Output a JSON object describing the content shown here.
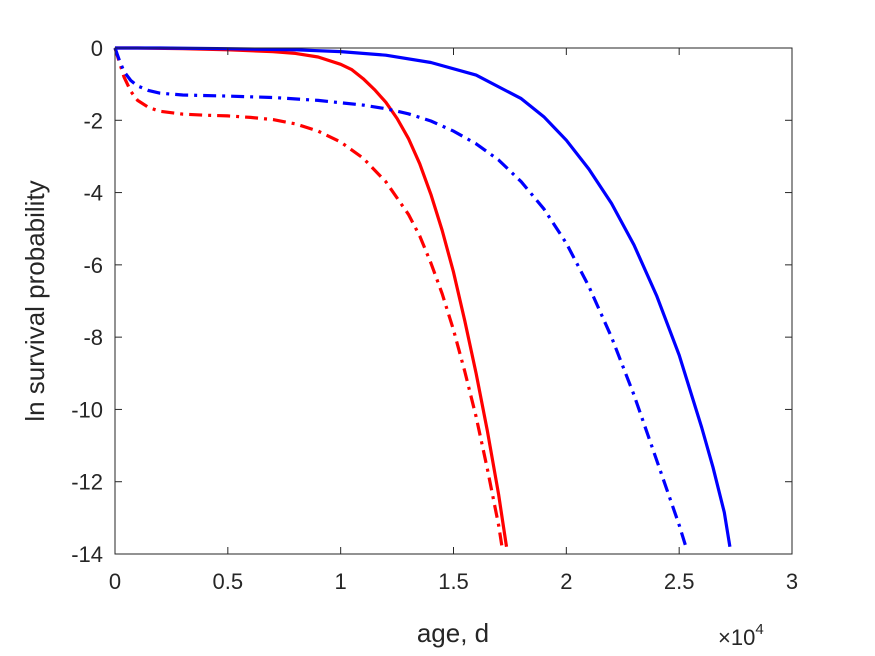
{
  "chart_data": {
    "type": "line",
    "xlabel": "age, d",
    "ylabel": "ln survival probability",
    "x_exponent": {
      "base": "10",
      "power": "4"
    },
    "xlim": [
      0,
      30000
    ],
    "ylim": [
      -14,
      0
    ],
    "xticks": [
      0,
      5000,
      10000,
      15000,
      20000,
      25000,
      30000
    ],
    "xtick_labels": [
      "0",
      "0.5",
      "1",
      "1.5",
      "2",
      "2.5",
      "3"
    ],
    "yticks": [
      0,
      -2,
      -4,
      -6,
      -8,
      -10,
      -12,
      -14
    ],
    "ytick_labels": [
      "0",
      "-2",
      "-4",
      "-6",
      "-8",
      "-10",
      "-12",
      "-14"
    ],
    "grid": false,
    "box": true,
    "series": [
      {
        "color": "#ff0000",
        "style": "solid",
        "points": [
          [
            0,
            0
          ],
          [
            1000,
            0
          ],
          [
            3000,
            -0.02
          ],
          [
            5000,
            -0.05
          ],
          [
            7000,
            -0.1
          ],
          [
            8000,
            -0.15
          ],
          [
            9000,
            -0.25
          ],
          [
            10000,
            -0.45
          ],
          [
            10500,
            -0.6
          ],
          [
            11000,
            -0.85
          ],
          [
            11500,
            -1.15
          ],
          [
            12000,
            -1.5
          ],
          [
            12500,
            -1.95
          ],
          [
            13000,
            -2.5
          ],
          [
            13500,
            -3.2
          ],
          [
            14000,
            -4.05
          ],
          [
            14500,
            -5.05
          ],
          [
            15000,
            -6.2
          ],
          [
            15500,
            -7.55
          ],
          [
            16000,
            -9.0
          ],
          [
            16500,
            -10.6
          ],
          [
            17000,
            -12.35
          ],
          [
            17350,
            -13.8
          ]
        ]
      },
      {
        "color": "#ff0000",
        "style": "dashdot",
        "points": [
          [
            0,
            0
          ],
          [
            200,
            -0.4
          ],
          [
            400,
            -0.8
          ],
          [
            700,
            -1.2
          ],
          [
            1000,
            -1.45
          ],
          [
            1500,
            -1.65
          ],
          [
            2000,
            -1.75
          ],
          [
            3000,
            -1.83
          ],
          [
            4000,
            -1.86
          ],
          [
            5000,
            -1.88
          ],
          [
            6000,
            -1.92
          ],
          [
            7000,
            -1.98
          ],
          [
            8000,
            -2.1
          ],
          [
            9000,
            -2.3
          ],
          [
            10000,
            -2.6
          ],
          [
            11000,
            -3.05
          ],
          [
            12000,
            -3.7
          ],
          [
            13000,
            -4.6
          ],
          [
            13500,
            -5.2
          ],
          [
            14000,
            -5.95
          ],
          [
            14500,
            -6.8
          ],
          [
            15000,
            -7.8
          ],
          [
            15500,
            -8.95
          ],
          [
            16000,
            -10.2
          ],
          [
            16500,
            -11.65
          ],
          [
            17000,
            -13.2
          ],
          [
            17150,
            -13.8
          ]
        ]
      },
      {
        "color": "#0000ff",
        "style": "solid",
        "points": [
          [
            0,
            0
          ],
          [
            2000,
            0
          ],
          [
            5000,
            -0.02
          ],
          [
            8000,
            -0.05
          ],
          [
            10000,
            -0.1
          ],
          [
            12000,
            -0.2
          ],
          [
            14000,
            -0.4
          ],
          [
            16000,
            -0.75
          ],
          [
            18000,
            -1.4
          ],
          [
            19000,
            -1.9
          ],
          [
            20000,
            -2.55
          ],
          [
            21000,
            -3.35
          ],
          [
            22000,
            -4.3
          ],
          [
            23000,
            -5.45
          ],
          [
            24000,
            -6.85
          ],
          [
            25000,
            -8.5
          ],
          [
            26000,
            -10.5
          ],
          [
            26500,
            -11.6
          ],
          [
            27000,
            -12.85
          ],
          [
            27250,
            -13.8
          ]
        ]
      },
      {
        "color": "#0000ff",
        "style": "dashdot",
        "points": [
          [
            0,
            0
          ],
          [
            200,
            -0.35
          ],
          [
            400,
            -0.65
          ],
          [
            700,
            -0.9
          ],
          [
            1000,
            -1.05
          ],
          [
            1500,
            -1.18
          ],
          [
            2000,
            -1.25
          ],
          [
            3000,
            -1.3
          ],
          [
            5000,
            -1.33
          ],
          [
            7000,
            -1.37
          ],
          [
            9000,
            -1.45
          ],
          [
            11000,
            -1.58
          ],
          [
            12000,
            -1.68
          ],
          [
            13000,
            -1.82
          ],
          [
            14000,
            -2.02
          ],
          [
            15000,
            -2.3
          ],
          [
            16000,
            -2.65
          ],
          [
            17000,
            -3.1
          ],
          [
            18000,
            -3.7
          ],
          [
            19000,
            -4.45
          ],
          [
            20000,
            -5.4
          ],
          [
            21000,
            -6.6
          ],
          [
            22000,
            -8.0
          ],
          [
            23000,
            -9.6
          ],
          [
            24000,
            -11.4
          ],
          [
            25000,
            -13.2
          ],
          [
            25300,
            -13.8
          ]
        ]
      }
    ]
  }
}
